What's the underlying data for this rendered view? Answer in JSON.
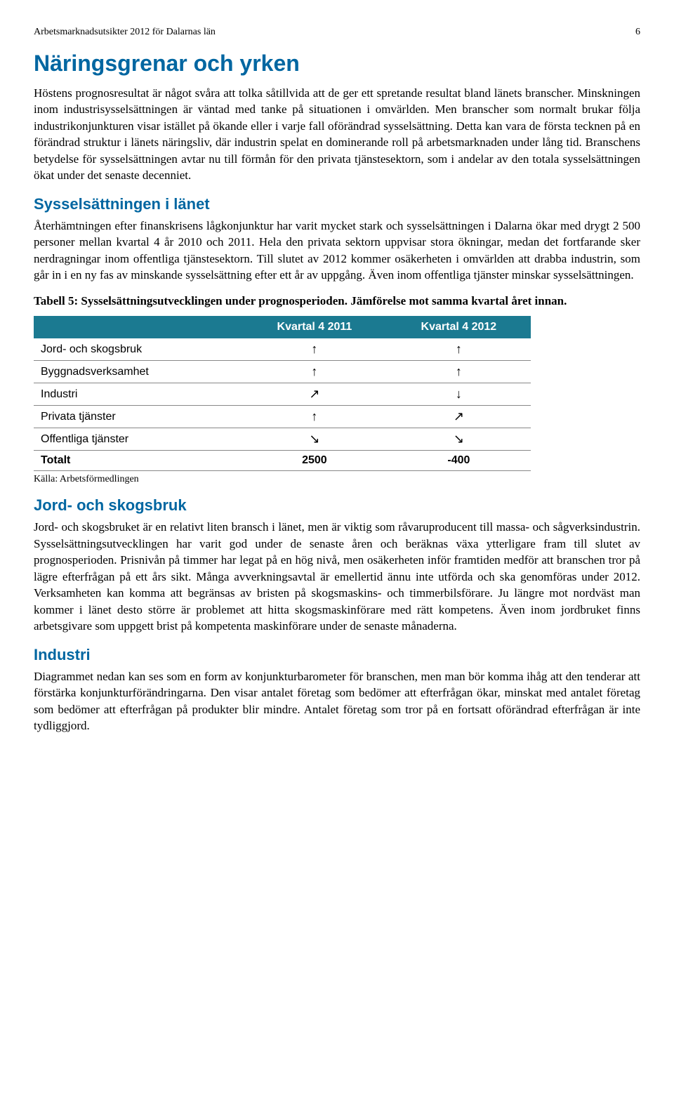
{
  "header": {
    "doc_title": "Arbetsmarknadsutsikter 2012 för Dalarnas län",
    "page_number": "6"
  },
  "title": "Näringsgrenar och yrken",
  "para1": "Höstens prognosresultat är något svåra att tolka såtillvida att de ger ett spretande resultat bland länets branscher. Minskningen inom industrisysselsättningen är väntad med tanke på situationen i omvärlden. Men branscher som normalt brukar följa industrikonjunkturen visar istället på ökande eller i varje fall oförändrad sysselsättning. Detta kan vara de första tecknen på en förändrad struktur i länets näringsliv, där industrin spelat en dominerande roll på arbetsmarknaden under lång tid. Branschens betydelse för sysselsättningen avtar nu till förmån för den privata tjänstesektorn, som i andelar av den totala sysselsättningen ökat under det senaste decenniet.",
  "section1_title": "Sysselsättningen i länet",
  "para2": "Återhämtningen efter finanskrisens lågkonjunktur har varit mycket stark och sysselsättningen i Dalarna ökar med drygt 2 500 personer mellan kvartal 4 år 2010 och 2011. Hela den privata sektorn uppvisar stora ökningar, medan det fortfarande sker nerdragningar inom offentliga tjänstesektorn. Till slutet av 2012 kommer osäkerheten i omvärlden att drabba industrin, som går in i en ny fas av minskande sysselsättning efter ett år av uppgång. Även inom offentliga tjänster minskar sysselsättningen.",
  "table_caption": "Tabell 5: Sysselsättningsutvecklingen under prognosperioden. Jämförelse mot samma kvartal året innan.",
  "table": {
    "header_col1": "Kvartal 4 2011",
    "header_col2": "Kvartal 4 2012",
    "rows": [
      {
        "label": "Jord- och skogsbruk",
        "c1": "↑",
        "c2": "↑"
      },
      {
        "label": "Byggnadsverksamhet",
        "c1": "↑",
        "c2": "↑"
      },
      {
        "label": "Industri",
        "c1": "↗",
        "c2": "↓"
      },
      {
        "label": "Privata tjänster",
        "c1": "↑",
        "c2": "↗"
      },
      {
        "label": "Offentliga tjänster",
        "c1": "↘",
        "c2": "↘"
      }
    ],
    "total_label": "Totalt",
    "total_c1": "2500",
    "total_c2": "-400",
    "source": "Källa: Arbetsförmedlingen",
    "colors": {
      "header_bg": "#1b7a91",
      "header_fg": "#ffffff",
      "border": "#888888"
    }
  },
  "section2_title": "Jord- och skogsbruk",
  "para3": "Jord- och skogsbruket är en relativt liten bransch i länet, men är viktig som råvaruproducent till massa- och sågverksindustrin. Sysselsättningsutvecklingen har varit god under de senaste åren och beräknas växa ytterligare fram till slutet av prognosperioden. Prisnivån på timmer har legat på en hög nivå, men osäkerheten inför framtiden medför att branschen tror på lägre efterfrågan på ett års sikt. Många avverkningsavtal är emellertid ännu inte utförda och ska genomföras under 2012. Verksamheten kan komma att begränsas av bristen på skogsmaskins- och timmerbilsförare. Ju längre mot nordväst man kommer i länet desto större är problemet att hitta skogsmaskinförare med rätt kompetens. Även inom jordbruket finns arbetsgivare som uppgett brist på kompetenta maskinförare under de senaste månaderna.",
  "section3_title": "Industri",
  "para4": "Diagrammet nedan kan ses som en form av konjunkturbarometer för branschen, men man bör komma ihåg att den tenderar att förstärka konjunkturförändringarna. Den visar antalet företag som bedömer att efterfrågan ökar, minskat med antalet företag som bedömer att efterfrågan på produkter blir mindre. Antalet företag som tror på en fortsatt oförändrad efterfrågan är inte tydliggjord."
}
